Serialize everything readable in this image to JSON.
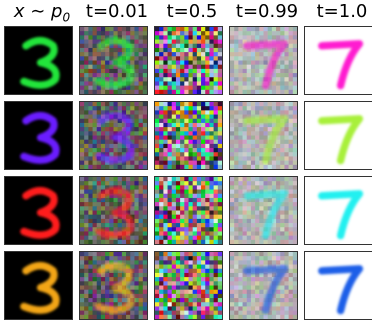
{
  "columns": [
    {
      "title_prefix": "x ∼ p",
      "title_sub": "0",
      "title": "",
      "kind": "clean"
    },
    {
      "title": "t=0.01",
      "kind": "t001"
    },
    {
      "title": "t=0.5",
      "kind": "t05"
    },
    {
      "title": "t=0.99",
      "kind": "t099"
    },
    {
      "title": "t=1.0",
      "kind": "t10"
    }
  ],
  "rows": [
    {
      "source_digit": "3",
      "source_color": "#22e53a",
      "target_digit": "7",
      "target_color": "#ff1fd0"
    },
    {
      "source_digit": "3",
      "source_color": "#6a1cff",
      "target_digit": "7",
      "target_color": "#a8f03a"
    },
    {
      "source_digit": "3",
      "source_color": "#ff1a1a",
      "target_digit": "7",
      "target_color": "#21f0f0"
    },
    {
      "source_digit": "3",
      "source_color": "#f2a516",
      "target_digit": "7",
      "target_color": "#1f5fe8"
    }
  ]
}
